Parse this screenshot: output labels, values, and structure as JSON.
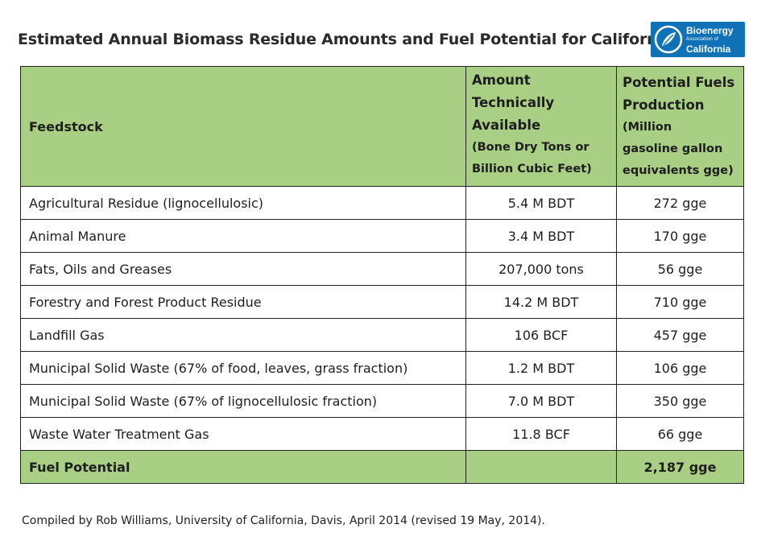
{
  "title": "Estimated Annual Biomass Residue Amounts and Fuel Potential for California",
  "logo": {
    "line1": "Bioenergy",
    "line2": "Association of",
    "line3": "California",
    "icon": "leaf-swoosh-icon",
    "color": "#0f72b6"
  },
  "table": {
    "headers": {
      "feedstock": "Feedstock",
      "amount_main": [
        "Amount",
        "Technically",
        "Available"
      ],
      "amount_sub": [
        "(Bone Dry Tons or",
        "Billion Cubic Feet)"
      ],
      "fuel_main": [
        "Potential Fuels",
        "Production"
      ],
      "fuel_sub": [
        "(Million",
        "gasoline gallon",
        "equivalents gge)"
      ]
    },
    "rows": [
      {
        "feedstock": "Agricultural Residue (lignocellulosic)",
        "amount": "5.4 M BDT",
        "fuel": "272 gge"
      },
      {
        "feedstock": "Animal Manure",
        "amount": "3.4 M BDT",
        "fuel": "170 gge"
      },
      {
        "feedstock": "Fats, Oils and Greases",
        "amount": "207,000 tons",
        "fuel": "56 gge"
      },
      {
        "feedstock": "Forestry and Forest Product Residue",
        "amount": "14.2 M BDT",
        "fuel": "710 gge"
      },
      {
        "feedstock": "Landfill Gas",
        "amount": "106 BCF",
        "fuel": "457 gge"
      },
      {
        "feedstock": "Municipal Solid Waste (67% of food, leaves, grass fraction)",
        "amount": "1.2 M BDT",
        "fuel": "106 gge"
      },
      {
        "feedstock": "Municipal Solid Waste (67% of lignocellulosic fraction)",
        "amount": "7.0 M BDT",
        "fuel": "350 gge"
      },
      {
        "feedstock": "Waste Water Treatment Gas",
        "amount": "11.8 BCF",
        "fuel": "66 gge"
      }
    ],
    "total": {
      "label": "Fuel Potential",
      "amount": "",
      "fuel": "2,187 gge"
    },
    "header_color": "#a9cf84"
  },
  "footnote": "Compiled by Rob Williams, University of California, Davis, April 2014 (revised 19 May, 2014)."
}
